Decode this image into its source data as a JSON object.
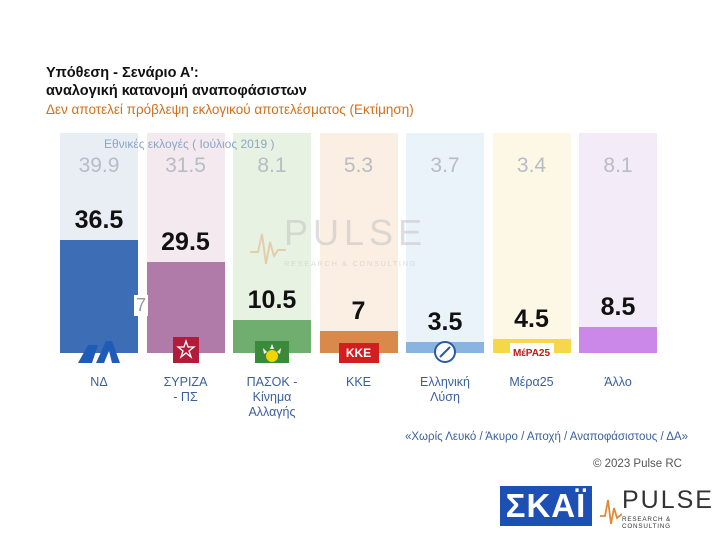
{
  "title_lines": [
    "Υπόθεση - Σενάριο Α':",
    "αναλογική κατανομή αναποφάσιστων"
  ],
  "subtitle": "Δεν αποτελεί πρόβλεψη εκλογικού αποτελέσματος   (Εκτίμηση)",
  "chart_data": {
    "type": "bar",
    "title": "Υπόθεση - Σενάριο Α': αναλογική κατανομή αναποφάσιστων",
    "subtitle": "Δεν αποτελεί πρόβλεψη εκλογικού αποτελέσματος   (Εκτίμηση)",
    "categories": [
      "ΝΔ",
      "ΣΥΡΙΖΑ - ΠΣ",
      "ΠΑΣΟΚ - Κίνημα Αλλαγής",
      "ΚΚΕ",
      "Ελληνική Λύση",
      "Μέρα25",
      "Άλλο"
    ],
    "category_labels": [
      [
        "ΝΔ"
      ],
      [
        "ΣΥΡΙΖΑ",
        "- ΠΣ"
      ],
      [
        "ΠΑΣΟΚ -",
        "Κίνημα",
        "Αλλαγής"
      ],
      [
        "ΚΚΕ"
      ],
      [
        "Ελληνική",
        "Λύση"
      ],
      [
        "Μέρα25"
      ],
      [
        "Άλλο"
      ]
    ],
    "series": [
      {
        "name": "Εθνικές εκλογές ( Ιούλιος 2019 )",
        "values": [
          39.9,
          31.5,
          8.1,
          5.3,
          3.7,
          3.4,
          8.1
        ]
      },
      {
        "values": [
          36.5,
          29.5,
          10.5,
          7,
          3.5,
          4.5,
          8.5
        ]
      }
    ],
    "current_labels": [
      "36.5",
      "29.5",
      "10.5",
      "7",
      "3.5",
      "4.5",
      "8.5"
    ],
    "previous_labels": [
      "39.9",
      "31.5",
      "8.1",
      "5.3",
      "3.7",
      "3.4",
      "8.1"
    ],
    "colors": [
      "#3d6eb5",
      "#b07ba8",
      "#6fae6f",
      "#d98a4a",
      "#8ab4e0",
      "#f5d84a",
      "#cc88e8"
    ],
    "bg_colors": [
      "#e9eef5",
      "#f3e9ef",
      "#e8f2e3",
      "#fbeee2",
      "#eaf2fa",
      "#fdf8e6",
      "#f3ecf8"
    ],
    "syriza_annotation": "7",
    "grid": false,
    "legend": "none"
  },
  "logos": {
    "nd": "ΝΔ",
    "kke": "ΚΚΕ",
    "mera25": "ΜέΡΑ25"
  },
  "watermark": {
    "text": "PULSE",
    "sub": "RESEARCH & CONSULTING"
  },
  "footnote": "«Χωρίς Λευκό / Άκυρο / Αποχή / Αναποφάσιστους / ΔΑ»",
  "copyright": "© 2023 Pulse RC",
  "brand": {
    "skai": "ΣΚΑΪ",
    "pulse": "PULSE",
    "pulse_sub": "RESEARCH & CONSULTING"
  }
}
